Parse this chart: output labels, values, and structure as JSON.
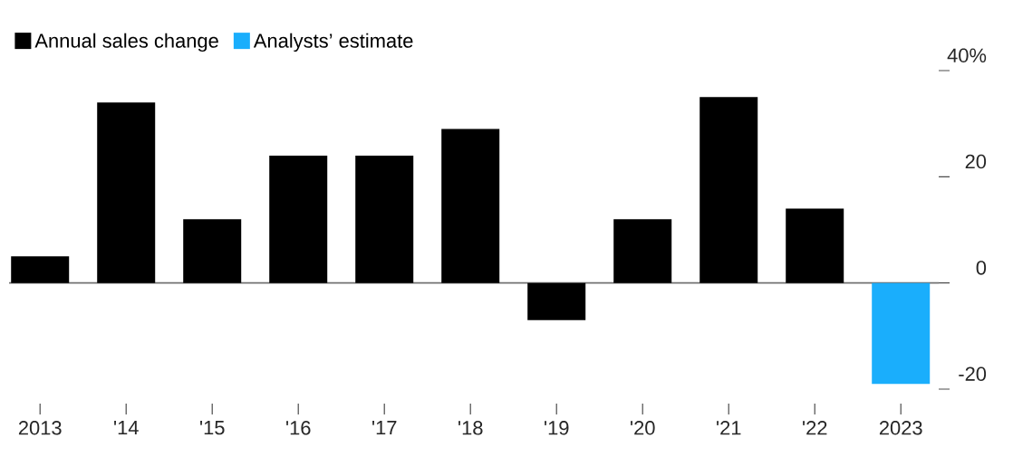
{
  "chart_data": {
    "type": "bar",
    "categories": [
      "2013",
      "'14",
      "'15",
      "'16",
      "'17",
      "'18",
      "'19",
      "'20",
      "'21",
      "'22",
      "2023"
    ],
    "series": [
      {
        "name": "Annual sales change",
        "color": "#000000",
        "values": [
          5,
          34,
          12,
          24,
          24,
          29,
          -7,
          12,
          35,
          14,
          null
        ]
      },
      {
        "name": "Analysts’ estimate",
        "color": "#1aaefc",
        "values": [
          null,
          null,
          null,
          null,
          null,
          null,
          null,
          null,
          null,
          null,
          -19
        ]
      }
    ],
    "ylim": [
      -20,
      40
    ],
    "yticks": [
      -20,
      0,
      20,
      {
        "value": 40,
        "label": "40%"
      }
    ],
    "legend": "top left"
  }
}
